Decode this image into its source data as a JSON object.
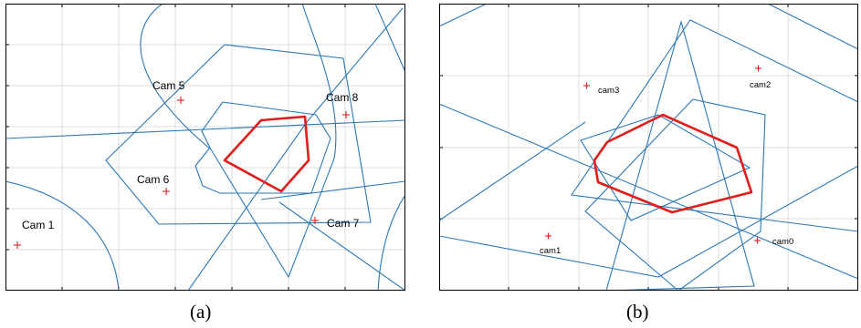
{
  "colors": {
    "polygon": "#2b77b6",
    "highlight": "#e21b1b",
    "grid": "#dcdcdc",
    "camera_marker": "#e21b1b"
  },
  "panel_a": {
    "caption": "(a)",
    "cameras": [
      {
        "id": "cam-1",
        "label": "Cam 1"
      },
      {
        "id": "cam-5",
        "label": "Cam 5"
      },
      {
        "id": "cam-6",
        "label": "Cam 6"
      },
      {
        "id": "cam-7",
        "label": "Cam 7"
      },
      {
        "id": "cam-8",
        "label": "Cam 8"
      }
    ]
  },
  "panel_b": {
    "caption": "(b)",
    "cameras": [
      {
        "id": "cam0",
        "label": "cam0"
      },
      {
        "id": "cam1",
        "label": "cam1"
      },
      {
        "id": "cam2",
        "label": "cam2"
      },
      {
        "id": "cam3",
        "label": "cam3"
      }
    ]
  }
}
